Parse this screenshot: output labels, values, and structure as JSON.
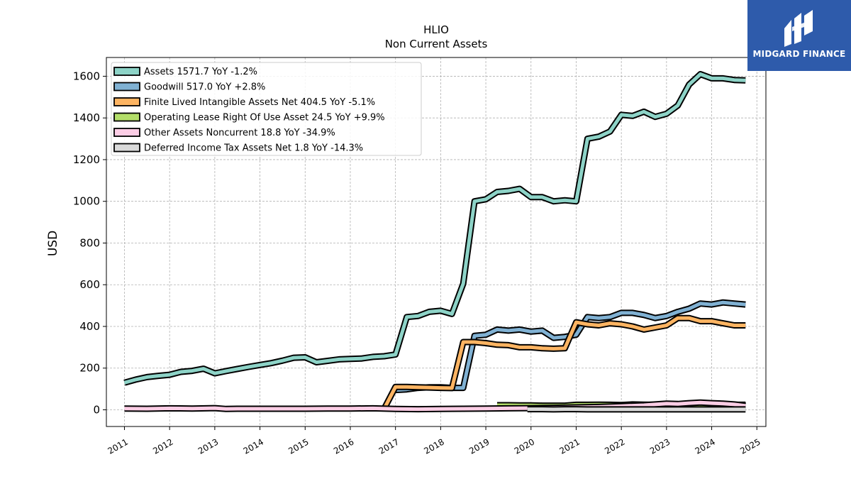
{
  "header": {
    "title": "HLIO",
    "subtitle": "Non Current  Assets"
  },
  "brand": {
    "name": "MIDGARD FINANCE",
    "color": "#2e5bab"
  },
  "chart_data": {
    "type": "line",
    "title": "HLIO",
    "subtitle": "Non Current  Assets",
    "xlabel": "",
    "ylabel": "USD",
    "xlim": [
      2010.6,
      2025.2
    ],
    "ylim": [
      -80,
      1690
    ],
    "grid": true,
    "legend_position": "top-left",
    "x_ticks": [
      "2011",
      "2012",
      "2013",
      "2014",
      "2015",
      "2016",
      "2017",
      "2018",
      "2019",
      "2020",
      "2021",
      "2022",
      "2023",
      "2024",
      "2025"
    ],
    "y_ticks": [
      0,
      200,
      400,
      600,
      800,
      1000,
      1200,
      1400,
      1600
    ],
    "series": [
      {
        "name": "Assets",
        "legend": "Assets  1571.7 YoY -1.2%",
        "color": "#8dd3c7",
        "x": [
          2011.0,
          2011.25,
          2011.5,
          2011.75,
          2012.0,
          2012.25,
          2012.5,
          2012.75,
          2013.0,
          2013.25,
          2013.5,
          2013.75,
          2014.0,
          2014.25,
          2014.5,
          2014.75,
          2015.0,
          2015.25,
          2015.5,
          2015.75,
          2016.0,
          2016.25,
          2016.5,
          2016.75,
          2017.0,
          2017.25,
          2017.5,
          2017.75,
          2018.0,
          2018.25,
          2018.5,
          2018.75,
          2019.0,
          2019.25,
          2019.5,
          2019.75,
          2020.0,
          2020.25,
          2020.5,
          2020.75,
          2021.0,
          2021.25,
          2021.5,
          2021.75,
          2022.0,
          2022.25,
          2022.5,
          2022.75,
          2023.0,
          2023.25,
          2023.5,
          2023.75,
          2024.0,
          2024.25,
          2024.5,
          2024.75
        ],
        "values": [
          130,
          145,
          157,
          163,
          168,
          182,
          187,
          197,
          175,
          186,
          196,
          206,
          215,
          224,
          236,
          250,
          252,
          228,
          235,
          242,
          244,
          246,
          254,
          257,
          265,
          445,
          450,
          470,
          475,
          460,
          605,
          1000,
          1010,
          1045,
          1050,
          1060,
          1020,
          1020,
          1000,
          1005,
          1000,
          1300,
          1310,
          1335,
          1415,
          1410,
          1430,
          1405,
          1420,
          1460,
          1560,
          1610,
          1590,
          1590,
          1582,
          1580
        ],
        "offset": 0
      },
      {
        "name": "Goodwill",
        "legend": "Goodwill  517.0 YoY +2.8%",
        "color": "#80b1d3",
        "x": [
          2017.0,
          2017.25,
          2017.5,
          2017.75,
          2018.0,
          2018.25,
          2018.5,
          2018.75,
          2019.0,
          2019.25,
          2019.5,
          2019.75,
          2020.0,
          2020.25,
          2020.5,
          2020.75,
          2021.0,
          2021.25,
          2021.5,
          2021.75,
          2022.0,
          2022.25,
          2022.5,
          2022.75,
          2023.0,
          2023.25,
          2023.5,
          2023.75,
          2024.0,
          2024.25,
          2024.5,
          2024.75
        ],
        "values": [
          95,
          98,
          105,
          108,
          108,
          105,
          105,
          355,
          360,
          385,
          380,
          385,
          375,
          380,
          345,
          350,
          360,
          445,
          440,
          445,
          465,
          465,
          455,
          440,
          450,
          470,
          485,
          510,
          505,
          515,
          510,
          505
        ],
        "offset": 0
      },
      {
        "name": "Finite Lived Intangible Assets Net",
        "legend": "Finite Lived Intangible Assets Net  404.5 YoY -5.1%",
        "color": "#fdb462",
        "x": [
          2016.75,
          2017.0,
          2017.25,
          2017.5,
          2017.75,
          2018.0,
          2018.25,
          2018.5,
          2018.75,
          2019.0,
          2019.25,
          2019.5,
          2019.75,
          2020.0,
          2020.25,
          2020.5,
          2020.75,
          2021.0,
          2021.25,
          2021.5,
          2021.75,
          2022.0,
          2022.25,
          2022.5,
          2022.75,
          2023.0,
          2023.25,
          2023.5,
          2023.75,
          2024.0,
          2024.25,
          2024.5,
          2024.75
        ],
        "values": [
          5,
          110,
          110,
          108,
          107,
          105,
          104,
          325,
          325,
          320,
          312,
          310,
          300,
          300,
          295,
          293,
          295,
          420,
          410,
          405,
          415,
          410,
          400,
          385,
          395,
          405,
          440,
          440,
          425,
          425,
          415,
          405,
          405
        ],
        "offset": 0
      },
      {
        "name": "Operating Lease Right Of Use Asset",
        "legend": "Operating Lease Right Of Use Asset  24.5 YoY +9.9%",
        "color": "#b3de69",
        "x": [
          2019.25,
          2019.5,
          2019.75,
          2020.0,
          2020.25,
          2020.5,
          2020.75,
          2021.0,
          2021.25,
          2021.5,
          2021.75,
          2022.0,
          2022.25,
          2022.5,
          2022.75,
          2023.0,
          2023.25,
          2023.5,
          2023.75,
          2024.0,
          2024.25,
          2024.5,
          2024.75
        ],
        "values": [
          22,
          22,
          21,
          21,
          20,
          20,
          20,
          24,
          24,
          25,
          24,
          23,
          26,
          25,
          24,
          24,
          23,
          25,
          24,
          24,
          24,
          24,
          24
        ],
        "offset": 0
      },
      {
        "name": "Other Assets Noncurrent",
        "legend": "Other Assets Noncurrent  18.8 YoY -34.9%",
        "color": "#fccde5",
        "x": [
          2011.0,
          2011.5,
          2012.0,
          2012.5,
          2013.0,
          2013.25,
          2013.5,
          2014.0,
          2014.5,
          2015.0,
          2015.5,
          2016.0,
          2016.5,
          2017.0,
          2017.5,
          2018.0,
          2018.5,
          2019.0,
          2019.5,
          2020.0,
          2020.5,
          2021.0,
          2021.5,
          2022.0,
          2022.5,
          2023.0,
          2023.25,
          2023.5,
          2023.75,
          2024.0,
          2024.25,
          2024.5,
          2024.75
        ],
        "values": [
          6,
          5,
          7,
          6,
          8,
          4,
          5,
          5,
          5,
          5,
          6,
          6,
          7,
          4,
          3,
          4,
          5,
          6,
          7,
          8,
          10,
          12,
          14,
          18,
          22,
          30,
          28,
          32,
          35,
          32,
          30,
          26,
          19
        ],
        "offset": 0
      },
      {
        "name": "Deferred Income Tax Assets Net",
        "legend": "Deferred Income Tax Assets Net  1.8 YoY -14.3%",
        "color": "#d9d9d9",
        "x": [
          2019.92,
          2020.25,
          2020.5,
          2020.75,
          2021.0,
          2021.25,
          2021.5,
          2021.75,
          2022.0,
          2022.25,
          2022.5,
          2022.75,
          2023.0,
          2023.25,
          2023.5,
          2023.75,
          2024.0,
          2024.25,
          2024.5,
          2024.75
        ],
        "values": [
          3,
          3,
          2,
          3,
          3,
          2,
          2,
          2,
          2,
          2,
          2,
          2,
          2,
          2,
          2,
          2,
          2,
          2,
          2,
          2
        ],
        "offset": 0
      }
    ]
  }
}
